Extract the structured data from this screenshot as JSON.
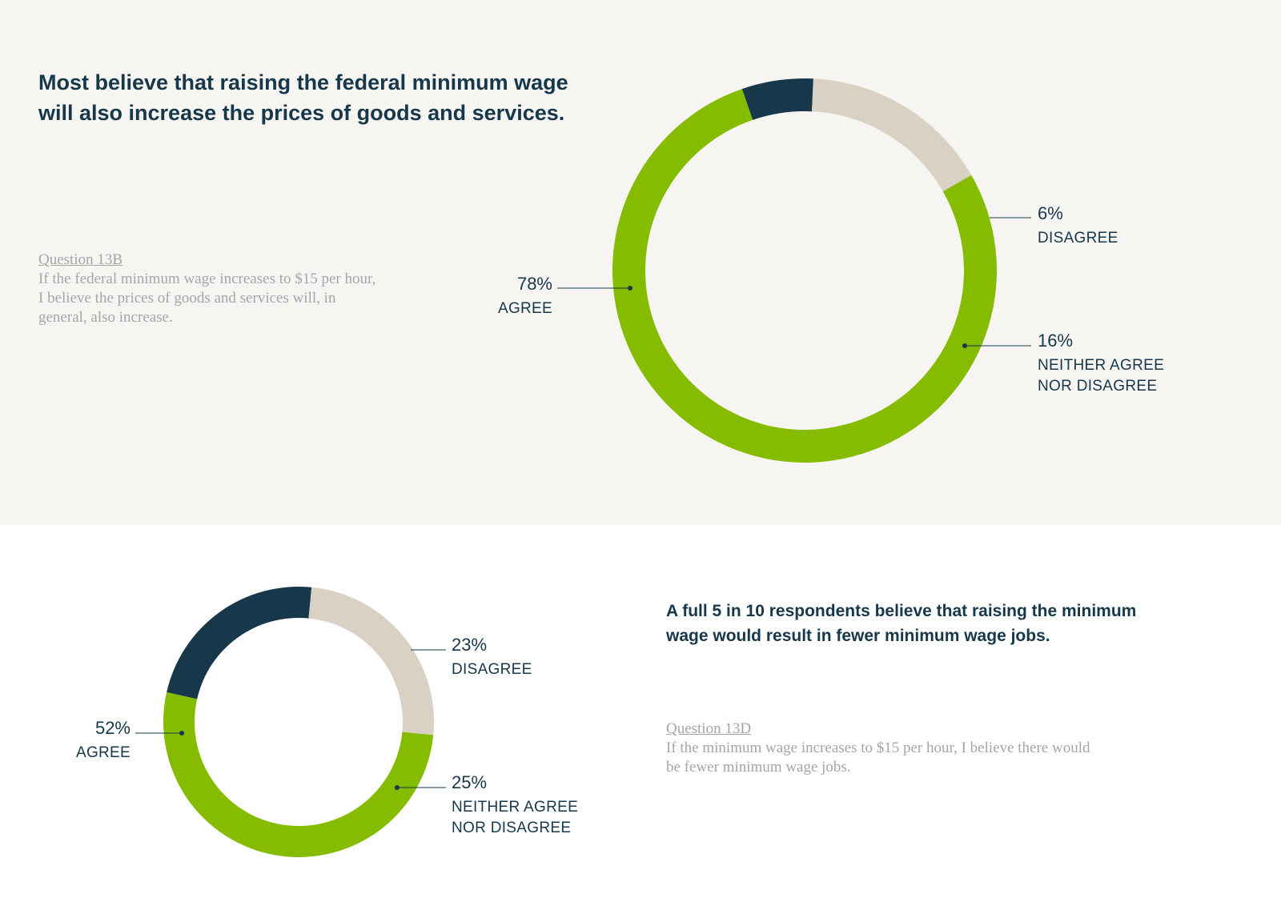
{
  "sections": [
    {
      "headline": "Most believe that raising the federal minimum wage will also increase the prices of goods and services.",
      "question_label": "Question 13B",
      "question_text": "If the federal minimum wage increases to $15 per hour, I believe the prices of goods and services will, in general, also increase."
    },
    {
      "headline": "A full 5 in 10 respondents believe that raising the minimum wage would result in fewer minimum wage jobs.",
      "question_label": "Question 13D",
      "question_text": "If the minimum wage increases to $15 per hour, I believe there would be fewer minimum wage jobs."
    }
  ],
  "colors": {
    "agree": "#86bc00",
    "disagree": "#16384a",
    "neither": "#d9d1c4",
    "text": "#16384a",
    "muted": "#a2a7a7",
    "top_background": "#f6f5f2"
  },
  "chart_data": [
    {
      "type": "pie",
      "variant": "donut",
      "categories": [
        "AGREE",
        "DISAGREE",
        "NEITHER AGREE NOR DISAGREE"
      ],
      "values": [
        78,
        6,
        16
      ],
      "labels": [
        {
          "value": "78%",
          "lines": [
            "AGREE"
          ]
        },
        {
          "value": "6%",
          "lines": [
            "DISAGREE"
          ]
        },
        {
          "value": "16%",
          "lines": [
            "NEITHER AGREE",
            "NOR DISAGREE"
          ]
        }
      ]
    },
    {
      "type": "pie",
      "variant": "donut",
      "categories": [
        "AGREE",
        "DISAGREE",
        "NEITHER AGREE NOR DISAGREE"
      ],
      "values": [
        52,
        23,
        25
      ],
      "labels": [
        {
          "value": "52%",
          "lines": [
            "AGREE"
          ]
        },
        {
          "value": "23%",
          "lines": [
            "DISAGREE"
          ]
        },
        {
          "value": "25%",
          "lines": [
            "NEITHER AGREE",
            "NOR DISAGREE"
          ]
        }
      ]
    }
  ]
}
